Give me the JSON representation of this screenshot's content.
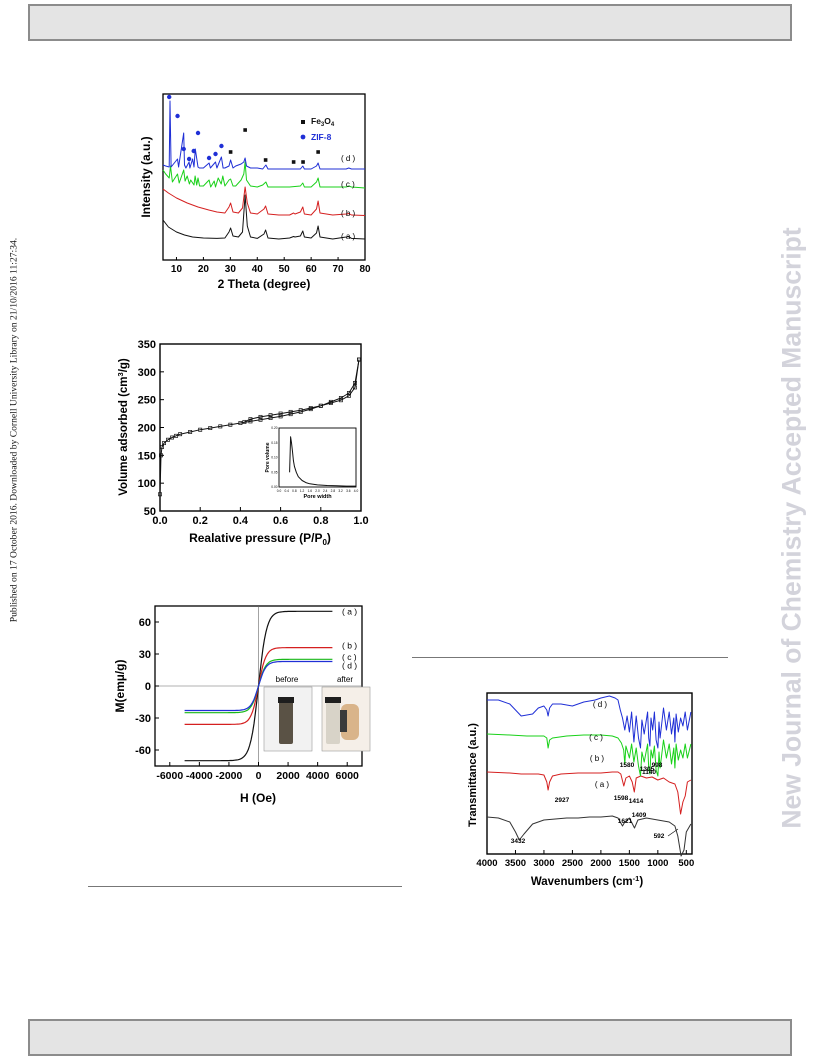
{
  "side_left_text": "Published on 17 October 2016. Downloaded by Cornell University Library on 21/10/2016 11:27:34.",
  "side_right_text": "New Journal of Chemistry Accepted Manuscript",
  "chart_data": [
    {
      "id": "xrd",
      "type": "line",
      "xlabel": "2 Theta (degree)",
      "ylabel": "Intensity (a.u.)",
      "xlim": [
        5,
        80
      ],
      "xticks": [
        10,
        20,
        30,
        40,
        50,
        60,
        70,
        80
      ],
      "legend": [
        {
          "label": "Fe3O4",
          "marker": "square",
          "color": "#111111"
        },
        {
          "label": "ZIF-8",
          "marker": "circle",
          "color": "#1f2fd6"
        }
      ],
      "legend_position": "top-right",
      "series": [
        {
          "name": "(a)",
          "color": "#111111",
          "offset": 0,
          "x": [
            5,
            7,
            10,
            13,
            16,
            20,
            25,
            28,
            29.5,
            30.1,
            31,
            33,
            34.5,
            35.5,
            36.3,
            37.5,
            40,
            42.5,
            43.1,
            44,
            48,
            52,
            53.5,
            54,
            56,
            56.9,
            57.5,
            60,
            62,
            62.6,
            63.3,
            68,
            73,
            74,
            75,
            80
          ],
          "y": [
            20,
            13,
            8,
            5,
            3,
            2,
            1.6,
            2,
            8,
            12,
            4,
            3,
            8,
            45,
            14,
            3,
            1.6,
            6,
            10,
            2,
            1,
            2,
            3.5,
            3,
            4,
            9,
            3,
            2,
            7,
            14,
            3,
            1,
            3,
            3.5,
            1.6,
            1
          ]
        },
        {
          "name": "(b)",
          "color": "#d52020",
          "offset": 45,
          "x": [
            5,
            7,
            10,
            14,
            18,
            22,
            25,
            28,
            29.5,
            30.1,
            31,
            33,
            34.5,
            35.5,
            36.3,
            37.5,
            40,
            42.5,
            43.1,
            44,
            48,
            52,
            53.5,
            54,
            56,
            56.9,
            57.5,
            60,
            62,
            62.6,
            63.3,
            68,
            73,
            74,
            75,
            80
          ],
          "y": [
            28,
            24,
            19,
            14,
            10,
            7,
            5,
            4,
            10,
            14,
            5,
            4,
            9,
            30,
            14,
            4,
            3,
            8,
            11,
            3,
            2,
            2,
            4,
            3,
            5,
            10,
            3,
            2,
            8,
            16,
            4,
            2,
            3,
            3.5,
            2,
            1.5
          ]
        },
        {
          "name": "(c)",
          "color": "#19d119",
          "offset": 80,
          "x": [
            5,
            6,
            7.3,
            7.8,
            8.5,
            10.4,
            11,
            12.7,
            13.2,
            14,
            14.8,
            15.3,
            16.5,
            16.9,
            17.5,
            18,
            18.6,
            20,
            22.1,
            22.7,
            24,
            24.5,
            25.5,
            26.6,
            27.2,
            28,
            29.5,
            30.1,
            31,
            32,
            34,
            35,
            35.5,
            36,
            37.5,
            40,
            42,
            43.2,
            44,
            48,
            52,
            56,
            56.9,
            57.5,
            60,
            62,
            62.6,
            63.3,
            68,
            73,
            74,
            75,
            80
          ],
          "y": [
            20,
            16,
            12,
            24,
            8,
            16,
            7,
            20,
            9,
            14,
            6,
            10,
            5,
            14,
            5,
            12,
            4,
            4,
            10,
            3,
            9,
            3,
            12,
            6,
            14,
            4,
            10,
            11,
            4,
            4,
            10,
            16,
            28,
            10,
            4,
            3,
            5,
            8,
            3,
            3,
            3,
            4,
            7,
            3,
            3,
            8,
            12,
            3,
            3,
            3,
            4,
            3,
            2
          ]
        },
        {
          "name": "(d)",
          "color": "#1f2fd6",
          "offset": 120,
          "x": [
            5,
            6,
            7.3,
            7.6,
            8,
            10.4,
            10.8,
            12.7,
            13,
            13.5,
            14.7,
            15,
            16,
            16.5,
            17,
            18,
            18.5,
            20,
            22.1,
            22.6,
            24.5,
            25,
            26.7,
            27.3,
            28,
            29.5,
            30.1,
            31,
            32,
            34,
            35,
            35.5,
            36,
            37.5,
            40,
            42,
            43.2,
            44,
            48,
            52,
            56,
            56.9,
            57.5,
            60,
            62,
            62.6,
            63.3,
            68,
            73,
            74,
            75,
            80
          ],
          "y": [
            6,
            5,
            4,
            70,
            4,
            12,
            4,
            38,
            6,
            3,
            9,
            3,
            12,
            4,
            22,
            4,
            3,
            3,
            8,
            3,
            9,
            3,
            14,
            3,
            3,
            5,
            11,
            3,
            5,
            7,
            9,
            13,
            5,
            3,
            3,
            2,
            6,
            2,
            2,
            2,
            2,
            5,
            2,
            2,
            5,
            8,
            2,
            2,
            2,
            3,
            2,
            2
          ]
        }
      ],
      "series_labels": [
        "( a )",
        "( b )",
        "( c )",
        "( d )"
      ],
      "markers": {
        "fe3o4_x": [
          30.1,
          35.5,
          43.1,
          53.5,
          57.0,
          62.6
        ],
        "zif8_x": [
          7.3,
          10.4,
          12.7,
          14.7,
          16.4,
          18.0,
          22.1,
          24.5,
          26.7
        ]
      }
    },
    {
      "id": "bet",
      "type": "line",
      "xlabel": "Realative pressure (P/P0)",
      "ylabel": "Volume adsorbed (cm3/g)",
      "xlim": [
        0.0,
        1.0
      ],
      "ylim": [
        50,
        350
      ],
      "xticks": [
        0.0,
        0.2,
        0.4,
        0.6,
        0.8,
        1.0
      ],
      "yticks": [
        50,
        100,
        150,
        200,
        250,
        300,
        350
      ],
      "series": [
        {
          "name": "",
          "color": "#111111",
          "x": [
            0.0,
            0.005,
            0.01,
            0.02,
            0.04,
            0.06,
            0.08,
            0.1,
            0.15,
            0.2,
            0.25,
            0.3,
            0.35,
            0.4,
            0.45,
            0.5,
            0.55,
            0.6,
            0.65,
            0.7,
            0.75,
            0.8,
            0.85,
            0.9,
            0.94,
            0.97,
            0.99
          ],
          "y": [
            80,
            150,
            165,
            172,
            178,
            182,
            185,
            188,
            192,
            196,
            199,
            202,
            205,
            208,
            211,
            214,
            217,
            220,
            224,
            228,
            233,
            239,
            246,
            253,
            262,
            280,
            322
          ]
        },
        {
          "name": "",
          "color": "#111111",
          "x": [
            0.99,
            0.97,
            0.94,
            0.9,
            0.85,
            0.8,
            0.75,
            0.7,
            0.65,
            0.6,
            0.55,
            0.5,
            0.45,
            0.42
          ],
          "y": [
            322,
            272,
            257,
            249,
            244,
            239,
            235,
            231,
            228,
            225,
            222,
            219,
            215,
            210
          ]
        }
      ],
      "inset": {
        "xlabel": "Pore width",
        "ylabel": "Pore volume",
        "xticks": [
          "0.0",
          "0.4",
          "0.8",
          "1.2",
          "1.6",
          "2.0",
          "2.4",
          "2.8",
          "3.2",
          "3.6",
          "4.0"
        ],
        "yticks": [
          "0.00",
          "0.05",
          "0.10",
          "0.15",
          "0.20"
        ],
        "x": [
          0.55,
          0.6,
          0.65,
          0.7,
          0.75,
          0.8,
          0.9,
          1.0,
          1.2,
          1.4,
          1.6,
          2.0,
          2.5,
          3.0,
          3.5,
          4.0
        ],
        "y": [
          0.05,
          0.17,
          0.15,
          0.12,
          0.09,
          0.07,
          0.05,
          0.035,
          0.022,
          0.015,
          0.011,
          0.007,
          0.005,
          0.004,
          0.003,
          0.003
        ]
      }
    },
    {
      "id": "vsm",
      "type": "line",
      "xlabel": "H (Oe)",
      "ylabel": "M(emµ/g)",
      "xlim": [
        -7000,
        7000
      ],
      "ylim": [
        -75,
        75
      ],
      "xticks": [
        -6000,
        -4000,
        -2000,
        0,
        2000,
        4000,
        6000
      ],
      "yticks": [
        -60,
        -30,
        0,
        30,
        60
      ],
      "series": [
        {
          "name": "(a)",
          "color": "#111111",
          "ms": 70,
          "k": 550
        },
        {
          "name": "(b)",
          "color": "#d52020",
          "ms": 36,
          "k": 500
        },
        {
          "name": "(c)",
          "color": "#19b819",
          "ms": 25,
          "k": 500
        },
        {
          "name": "(d)",
          "color": "#1f2fd6",
          "ms": 23,
          "k": 500
        }
      ],
      "series_labels": [
        "( a )",
        "( b )",
        "( c )",
        "( d )"
      ],
      "photo_labels": [
        "before",
        "after"
      ]
    },
    {
      "id": "ftir",
      "type": "line",
      "xlabel": "Wavenumbers (cm-1)",
      "ylabel": "Transmittance (a.u.)",
      "xlim": [
        4000,
        400
      ],
      "xticks": [
        4000,
        3500,
        3000,
        2500,
        2000,
        1500,
        1000,
        500
      ],
      "series": [
        {
          "name": "(a)",
          "color": "#333333",
          "offset": 0,
          "x": [
            4000,
            3800,
            3600,
            3500,
            3432,
            3350,
            3200,
            3000,
            2800,
            2600,
            2400,
            2200,
            2000,
            1800,
            1700,
            1621,
            1580,
            1500,
            1409,
            1350,
            1200,
            1000,
            800,
            700,
            650,
            592,
            540,
            500,
            420
          ],
          "y": [
            45,
            44,
            40,
            30,
            22,
            28,
            38,
            42,
            43,
            44,
            44,
            45,
            45,
            46,
            44,
            36,
            40,
            44,
            34,
            42,
            44,
            42,
            40,
            36,
            26,
            6,
            12,
            30,
            38
          ]
        },
        {
          "name": "(b)",
          "color": "#d52020",
          "offset": 40,
          "x": [
            4000,
            3600,
            3400,
            3100,
            3000,
            2950,
            2927,
            2900,
            2850,
            2700,
            2400,
            2000,
            1800,
            1700,
            1650,
            1598,
            1560,
            1500,
            1450,
            1414,
            1380,
            1300,
            1200,
            1100,
            1000,
            900,
            800,
            700,
            650,
            600,
            560,
            520,
            480,
            420
          ],
          "y": [
            50,
            49,
            48,
            48,
            47,
            40,
            32,
            40,
            46,
            48,
            49,
            49,
            50,
            50,
            48,
            36,
            44,
            46,
            40,
            30,
            44,
            46,
            44,
            45,
            42,
            44,
            40,
            38,
            30,
            8,
            20,
            26,
            40,
            42
          ]
        },
        {
          "name": "(c)",
          "color": "#19d119",
          "offset": 74,
          "x": [
            4000,
            3600,
            3300,
            3000,
            2950,
            2927,
            2900,
            2850,
            2600,
            2300,
            2000,
            1800,
            1700,
            1640,
            1600,
            1580,
            1560,
            1500,
            1460,
            1420,
            1380,
            1340,
            1305,
            1280,
            1240,
            1180,
            1160,
            1140,
            1120,
            1090,
            1060,
            1030,
            998,
            980,
            960,
            900,
            850,
            800,
            760,
            720,
            700,
            680,
            640,
            600,
            560,
            520,
            480,
            420
          ],
          "y": [
            54,
            53,
            52,
            52,
            50,
            40,
            48,
            50,
            52,
            53,
            53,
            52,
            50,
            45,
            38,
            24,
            42,
            30,
            44,
            26,
            40,
            22,
            12,
            36,
            26,
            44,
            20,
            14,
            38,
            30,
            42,
            18,
            12,
            36,
            20,
            48,
            30,
            44,
            24,
            40,
            20,
            44,
            28,
            38,
            30,
            44,
            30,
            44
          ]
        },
        {
          "name": "(d)",
          "color": "#1f2fd6",
          "offset": 106,
          "x": [
            4000,
            3800,
            3600,
            3400,
            3200,
            3100,
            3000,
            2950,
            2927,
            2900,
            2850,
            2700,
            2500,
            2300,
            2100,
            2000,
            1850,
            1750,
            1700,
            1660,
            1620,
            1580,
            1540,
            1500,
            1460,
            1420,
            1380,
            1340,
            1305,
            1280,
            1240,
            1180,
            1160,
            1140,
            1120,
            1090,
            1060,
            1030,
            998,
            980,
            960,
            900,
            850,
            800,
            760,
            720,
            700,
            680,
            640,
            600,
            560,
            520,
            480,
            420
          ],
          "y": [
            56,
            56,
            52,
            40,
            42,
            48,
            50,
            46,
            40,
            48,
            52,
            52,
            50,
            54,
            56,
            58,
            60,
            58,
            56,
            46,
            38,
            26,
            40,
            24,
            44,
            14,
            40,
            18,
            8,
            36,
            22,
            44,
            18,
            10,
            38,
            26,
            44,
            16,
            8,
            34,
            18,
            48,
            26,
            44,
            22,
            38,
            14,
            42,
            24,
            38,
            30,
            44,
            26,
            44
          ]
        }
      ],
      "series_labels": [
        "( a )",
        "( b )",
        "( c )",
        "( d )"
      ],
      "annotations": [
        "3432",
        "2927",
        "1598",
        "1414",
        "1621",
        "1409",
        "592",
        "1580",
        "1305",
        "998",
        "1140"
      ]
    }
  ]
}
